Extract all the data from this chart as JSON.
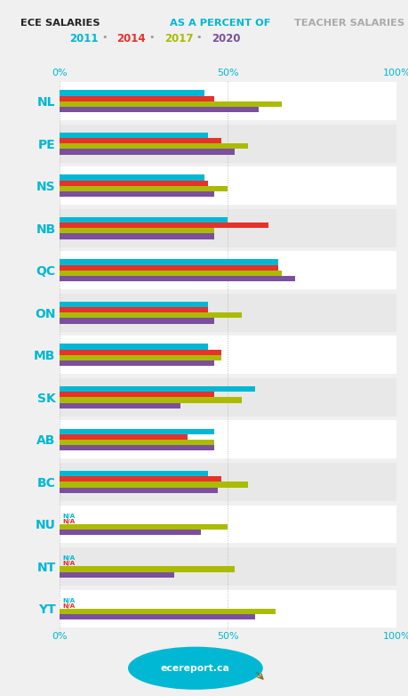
{
  "regions": [
    "NL",
    "PE",
    "NS",
    "NB",
    "QC",
    "ON",
    "MB",
    "SK",
    "AB",
    "BC",
    "NU",
    "NT",
    "YT"
  ],
  "years": [
    "2011",
    "2014",
    "2017",
    "2020"
  ],
  "colors": {
    "2011": "#00b8d4",
    "2014": "#e8312a",
    "2017": "#aabb00",
    "2020": "#7b4f9e"
  },
  "data": {
    "NL": [
      43,
      46,
      66,
      59
    ],
    "PE": [
      44,
      48,
      56,
      52
    ],
    "NS": [
      43,
      44,
      50,
      46
    ],
    "NB": [
      50,
      62,
      46,
      46
    ],
    "QC": [
      65,
      65,
      66,
      70
    ],
    "ON": [
      44,
      44,
      54,
      46
    ],
    "MB": [
      44,
      48,
      48,
      46
    ],
    "SK": [
      58,
      46,
      54,
      36
    ],
    "AB": [
      46,
      38,
      46,
      46
    ],
    "BC": [
      44,
      48,
      56,
      47
    ],
    "NU": [
      null,
      null,
      50,
      42
    ],
    "NT": [
      null,
      null,
      52,
      34
    ],
    "YT": [
      null,
      null,
      64,
      58
    ]
  },
  "background": "#f0f0f0",
  "band_white": "#ffffff",
  "band_gray": "#e8e8e8",
  "region_color": "#00b8d4",
  "axis_color": "#00b8d4",
  "title_ece": "#222222",
  "title_as": "#00b8d4",
  "title_teacher": "#aaaaaa",
  "legend_dot_color": "#999999",
  "logo_color": "#00b8d4",
  "logo_text": "ecereport.ca",
  "logo_fin_color": "#8B6914"
}
